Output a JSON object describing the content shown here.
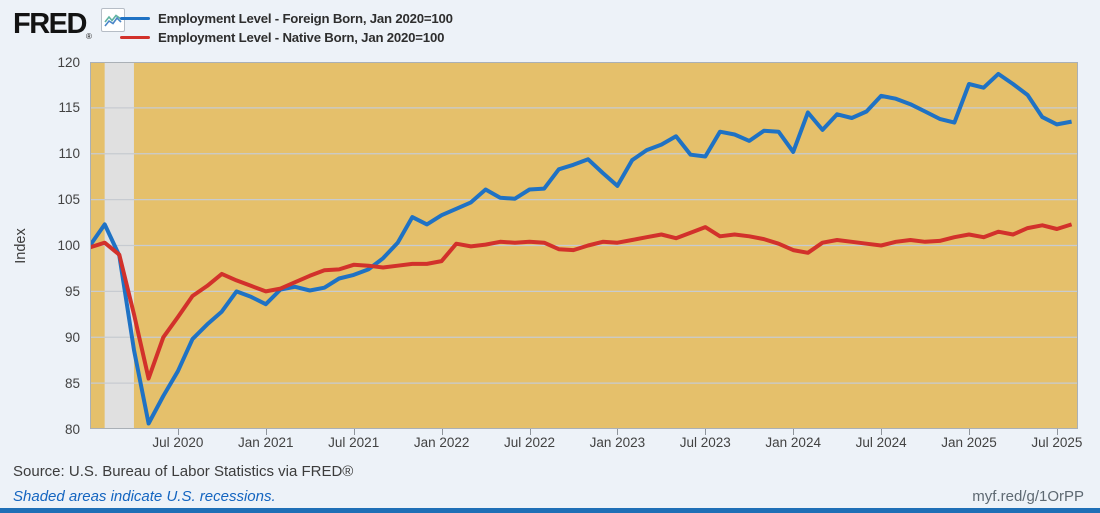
{
  "header": {
    "logo": "FRED",
    "logo_reg": "®"
  },
  "footer": {
    "source": "Source: U.S. Bureau of Labor Statistics via FRED®",
    "recession_note": "Shaded areas indicate U.S. recessions.",
    "share_url": "myf.red/g/1OrPP"
  },
  "colors": {
    "page_bg": "#edf2f8",
    "plot_bg": "#e5c06b",
    "recession_band": "#e0e0e0",
    "gridline": "#c7cbd1",
    "plot_border": "#aab0b6",
    "accent_bar": "#1f6fb6",
    "foreign_born_line": "#1f72c4",
    "native_born_line": "#d2312b"
  },
  "chart_data": {
    "type": "line",
    "title": "",
    "ylabel": "Index",
    "xlabel": "",
    "x_start": "Jan 2020",
    "frequency": "monthly",
    "ylim": [
      80,
      120
    ],
    "y_ticks": [
      80,
      85,
      90,
      95,
      100,
      105,
      110,
      115,
      120
    ],
    "x_ticks": [
      {
        "label": "Jul 2020",
        "month": 6
      },
      {
        "label": "Jan 2021",
        "month": 12
      },
      {
        "label": "Jul 2021",
        "month": 18
      },
      {
        "label": "Jan 2022",
        "month": 24
      },
      {
        "label": "Jul 2022",
        "month": 30
      },
      {
        "label": "Jan 2023",
        "month": 36
      },
      {
        "label": "Jul 2023",
        "month": 42
      },
      {
        "label": "Jan 2024",
        "month": 48
      },
      {
        "label": "Jul 2024",
        "month": 54
      },
      {
        "label": "Jan 2025",
        "month": 60
      },
      {
        "label": "Jul 2025",
        "month": 66
      }
    ],
    "recession_band_months": [
      1,
      3
    ],
    "legend_position": "top",
    "grid": true,
    "series": [
      {
        "name": "Employment Level - Foreign Born, Jan 2020=100",
        "color": "#1f72c4",
        "values": [
          100.0,
          102.3,
          98.9,
          88.6,
          80.6,
          83.6,
          86.3,
          89.8,
          91.4,
          92.8,
          95.0,
          94.4,
          93.6,
          95.2,
          95.5,
          95.1,
          95.4,
          96.4,
          96.8,
          97.4,
          98.6,
          100.3,
          103.1,
          102.3,
          103.3,
          104.0,
          104.7,
          106.1,
          105.2,
          105.1,
          106.1,
          106.2,
          108.3,
          108.8,
          109.4,
          107.9,
          106.5,
          109.3,
          110.4,
          111.0,
          111.9,
          109.9,
          109.7,
          112.4,
          112.1,
          111.4,
          112.5,
          112.4,
          110.2,
          114.5,
          112.6,
          114.3,
          113.9,
          114.6,
          116.3,
          116.0,
          115.4,
          114.6,
          113.8,
          113.4,
          117.6,
          117.2,
          118.7,
          117.6,
          116.4,
          114.0,
          113.2,
          113.5
        ]
      },
      {
        "name": "Employment Level - Native Born, Jan 2020=100",
        "color": "#d2312b",
        "values": [
          99.8,
          100.3,
          99.0,
          92.5,
          85.5,
          90.0,
          92.2,
          94.5,
          95.6,
          96.9,
          96.2,
          95.6,
          95.0,
          95.3,
          96.0,
          96.7,
          97.3,
          97.4,
          97.9,
          97.8,
          97.6,
          97.8,
          98.0,
          98.0,
          98.3,
          100.2,
          99.9,
          100.1,
          100.4,
          100.3,
          100.4,
          100.3,
          99.6,
          99.5,
          100.0,
          100.4,
          100.3,
          100.6,
          100.9,
          101.2,
          100.8,
          101.4,
          102.0,
          101.0,
          101.2,
          101.0,
          100.7,
          100.2,
          99.5,
          99.2,
          100.3,
          100.6,
          100.4,
          100.2,
          100.0,
          100.4,
          100.6,
          100.4,
          100.5,
          100.9,
          101.2,
          100.9,
          101.5,
          101.2,
          101.9,
          102.2,
          101.8,
          102.3
        ]
      }
    ]
  }
}
